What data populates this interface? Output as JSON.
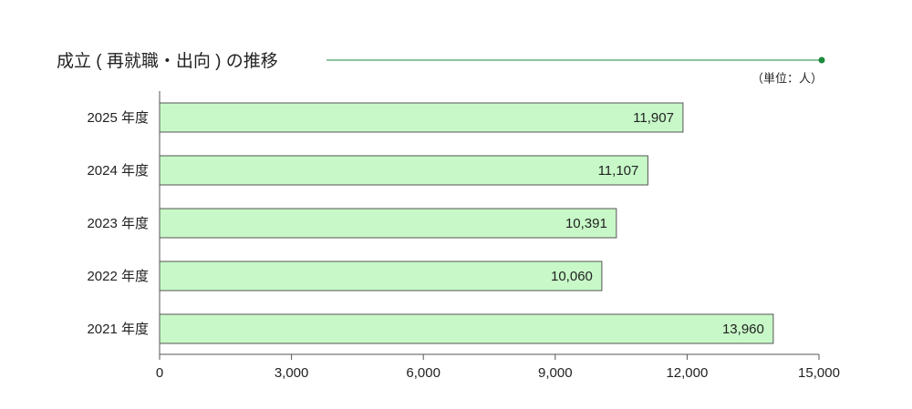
{
  "chart_data": {
    "type": "hbar",
    "title": "成立 ( 再就職・出向 ) の推移",
    "unit_label": "（単位：人）",
    "categories": [
      "2025 年度",
      "2024 年度",
      "2023 年度",
      "2022 年度",
      "2021 年度"
    ],
    "values": [
      11907,
      11107,
      10391,
      10060,
      13960
    ],
    "value_labels": [
      "11,907",
      "11,107",
      "10,391",
      "10,060",
      "13,960"
    ],
    "color": "#c8f8c8",
    "accent_color": "#1a8a3c",
    "xlim": [
      0,
      15000
    ],
    "xticks": [
      0,
      {
        "value": 3000,
        "label": "3,000"
      },
      {
        "value": 6000,
        "label": "6,000"
      },
      {
        "value": 9000,
        "label": "9,000"
      },
      {
        "value": 12000,
        "label": "12,000"
      },
      {
        "value": 15000,
        "label": "15,000"
      }
    ],
    "grid": false
  }
}
